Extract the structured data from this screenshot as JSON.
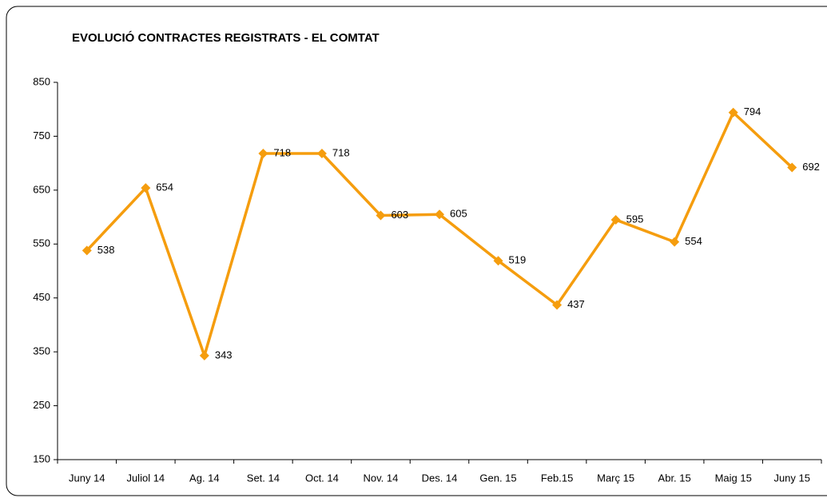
{
  "chart_data": {
    "type": "line",
    "title": "EVOLUCIÓ CONTRACTES REGISTRATS - EL COMTAT",
    "categories": [
      "Juny 14",
      "Juliol 14",
      "Ag. 14",
      "Set. 14",
      "Oct. 14",
      "Nov. 14",
      "Des. 14",
      "Gen. 15",
      "Feb.15",
      "Març 15",
      "Abr. 15",
      "Maig 15",
      "Juny 15"
    ],
    "series": [
      {
        "name": "Contractes",
        "color": "#f59d0e",
        "values": [
          538,
          654,
          343,
          718,
          718,
          603,
          605,
          519,
          437,
          595,
          554,
          794,
          692
        ]
      }
    ],
    "ylim": [
      150,
      850
    ],
    "yticks": [
      150,
      250,
      350,
      450,
      550,
      650,
      750,
      850
    ],
    "grid": false,
    "legend": false
  }
}
